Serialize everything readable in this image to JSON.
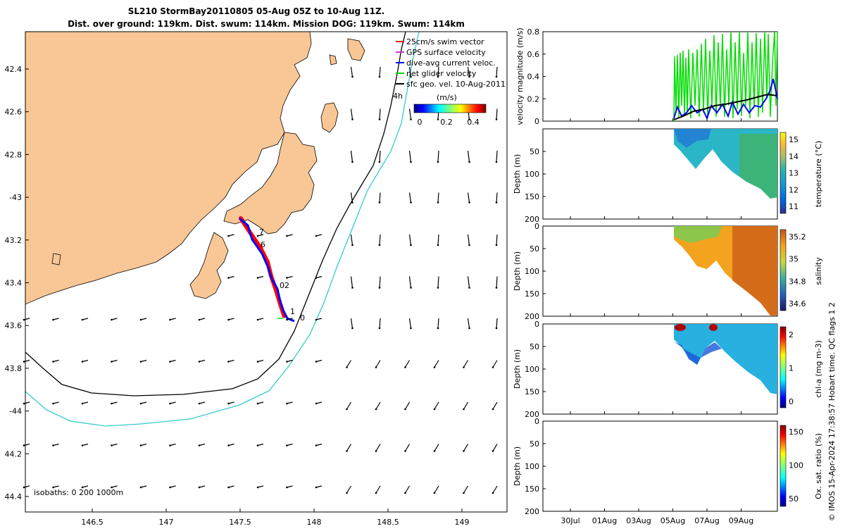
{
  "title": {
    "line1": "SL210 StormBay20110805 05-Aug 05Z to 10-Aug 11Z.",
    "line2": "Dist. over ground: 119km. Dist. swum: 114km. Mission DOG: 119km. Swum: 114km"
  },
  "map": {
    "lat_ticks": [
      "42.4",
      "42.6",
      "42.8",
      "-43",
      "43.2",
      "43.4",
      "43.6",
      "43.8",
      "-44",
      "44.2",
      "44.4"
    ],
    "lon_ticks": [
      "146.5",
      "147",
      "147.5",
      "148",
      "148.5",
      "149"
    ],
    "isobath_text": "isobaths: 0   200  1000m",
    "legend": [
      {
        "label": "25cm/s swim vector",
        "color": "#ff0000"
      },
      {
        "label": "GPS surface velocity",
        "color": "#cc33cc"
      },
      {
        "label": "dive-avg current veloc.",
        "color": "#0000ff"
      },
      {
        "label": "net glider velocity",
        "color": "#00dd00"
      },
      {
        "label": "sfc geo. vel. 10-Aug-2011",
        "color": "#000000"
      }
    ],
    "colorbar": {
      "title": "(m/s)",
      "ticks": [
        "0",
        "0.2",
        "0.4"
      ]
    },
    "track_labels": [
      "7",
      "6",
      "02",
      "1",
      "0"
    ],
    "elapsed_label": "4h",
    "colors": {
      "land": "#f9c796",
      "isobath_200": "#000000",
      "isobath_1000": "#33cccc",
      "track": "#0000ff",
      "swim": "#ff0000"
    }
  },
  "chart_data": [
    {
      "type": "line",
      "name": "velocity",
      "ylabel": "velocity magnitude (m/s)",
      "ylim": [
        0,
        0.8
      ],
      "yticks": [
        "0",
        "0.2",
        "0.4",
        "0.6",
        "0.8"
      ],
      "series": [
        {
          "name": "net glider velocity",
          "color": "#00dd00"
        },
        {
          "name": "dive-avg current veloc.",
          "color": "#0000ff"
        },
        {
          "name": "sfc geo. vel.",
          "color": "#000000"
        }
      ]
    },
    {
      "type": "heatmap",
      "ylabel": "Depth (m)",
      "yticks": [
        "",
        "50",
        "100",
        "150",
        "200"
      ],
      "cbar_label": "temperature (°C)",
      "cbar_ticks": [
        "15",
        "14",
        "13",
        "12",
        "11"
      ]
    },
    {
      "type": "heatmap",
      "ylabel": "Depth (m)",
      "yticks": [
        "0",
        "50",
        "100",
        "150",
        "200"
      ],
      "cbar_label": "salinity",
      "cbar_ticks": [
        "35.2",
        "35",
        "34.8",
        "34.6"
      ]
    },
    {
      "type": "heatmap",
      "ylabel": "Depth (m)",
      "yticks": [
        "0",
        "50",
        "100",
        "150",
        "200"
      ],
      "cbar_label": "chl-a (mg m-3)",
      "cbar_ticks": [
        "2",
        "1",
        "0"
      ]
    },
    {
      "type": "heatmap",
      "ylabel": "Depth (m)",
      "yticks": [
        "0",
        "50",
        "100",
        "150",
        "200"
      ],
      "cbar_label": "Ox. sat. ratio (%)",
      "cbar_ticks": [
        "150",
        "100",
        "50"
      ]
    }
  ],
  "time_axis": [
    "30Jul",
    "01Aug",
    "03Aug",
    "05Aug",
    "07Aug",
    "09Aug"
  ],
  "footer": "© IMOS 15-Apr-2024 17:38:57 Hobart time. QC flags 1  2"
}
